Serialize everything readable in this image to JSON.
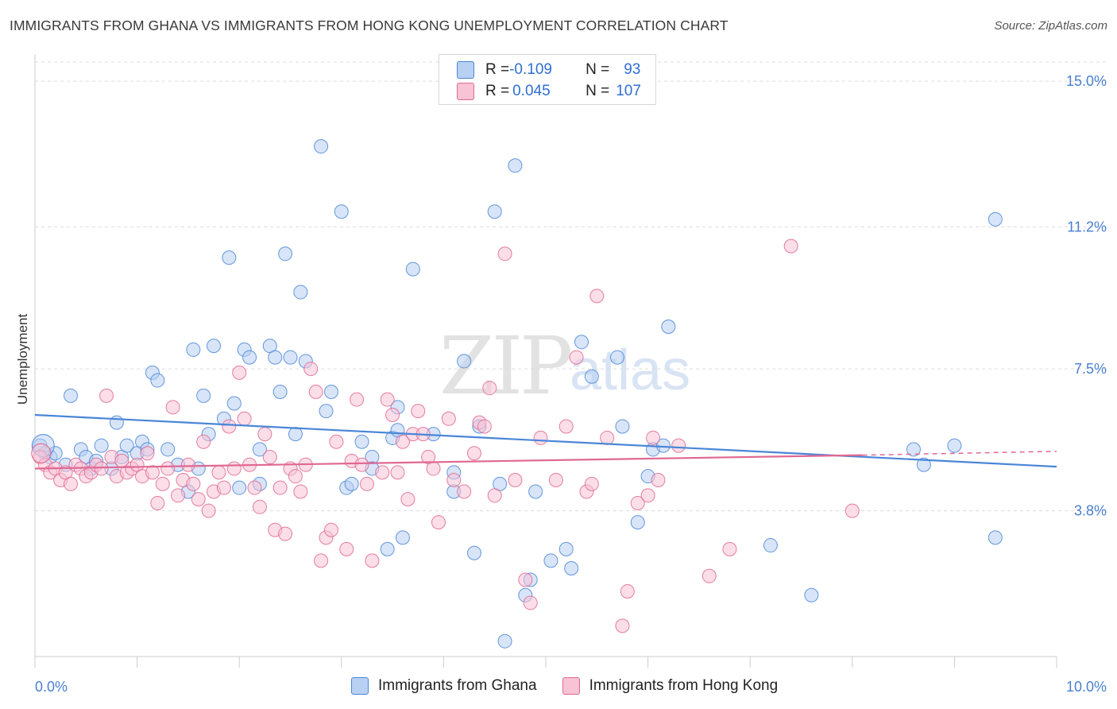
{
  "title": "IMMIGRANTS FROM GHANA VS IMMIGRANTS FROM HONG KONG UNEMPLOYMENT CORRELATION CHART",
  "source": "Source: ZipAtlas.com",
  "watermark": {
    "zip": "ZIP",
    "atlas": "atlas"
  },
  "legend_top": {
    "rows": [
      {
        "r_label": "R = ",
        "r_value": "-0.109",
        "n_label": "N = ",
        "n_value": "93",
        "color": "#a9c6f0"
      },
      {
        "r_label": "R = ",
        "r_value": "0.045",
        "n_label": "N = ",
        "n_value": "107",
        "color": "#f6bcd0"
      }
    ]
  },
  "legend_bottom": {
    "items": [
      {
        "label": "Immigrants from Ghana",
        "color": "#a9c6f0"
      },
      {
        "label": "Immigrants from Hong Kong",
        "color": "#f6bcd0"
      }
    ]
  },
  "chart_data": {
    "type": "scatter",
    "xlabel": "",
    "ylabel": "Unemployment",
    "xlim": [
      0,
      10
    ],
    "ylim": [
      0,
      15.5
    ],
    "x_tick_labels": [
      "0.0%",
      "10.0%"
    ],
    "y_ticks": [
      3.8,
      7.5,
      11.2,
      15.0
    ],
    "y_tick_labels": [
      "3.8%",
      "7.5%",
      "11.2%",
      "15.0%"
    ],
    "grid": "horizontal dashed",
    "series": [
      {
        "name": "Immigrants from Ghana",
        "color": "#4a86d8",
        "fill": "#b8d0f2",
        "trend": {
          "x": [
            0,
            10
          ],
          "y": [
            6.3,
            4.95
          ]
        },
        "points": [
          [
            0.05,
            5.5
          ],
          [
            0.1,
            5.3
          ],
          [
            0.15,
            5.2
          ],
          [
            0.2,
            5.3
          ],
          [
            0.3,
            5.0
          ],
          [
            0.35,
            6.8
          ],
          [
            0.45,
            5.4
          ],
          [
            0.5,
            5.2
          ],
          [
            0.55,
            4.9
          ],
          [
            0.6,
            5.1
          ],
          [
            0.65,
            5.5
          ],
          [
            0.75,
            4.9
          ],
          [
            0.8,
            6.1
          ],
          [
            0.85,
            5.2
          ],
          [
            0.9,
            5.5
          ],
          [
            1.0,
            5.3
          ],
          [
            1.05,
            5.6
          ],
          [
            1.1,
            5.4
          ],
          [
            1.15,
            7.4
          ],
          [
            1.2,
            7.2
          ],
          [
            1.3,
            5.4
          ],
          [
            1.4,
            5.0
          ],
          [
            1.5,
            4.3
          ],
          [
            1.55,
            8.0
          ],
          [
            1.6,
            4.9
          ],
          [
            1.65,
            6.8
          ],
          [
            1.7,
            5.8
          ],
          [
            1.75,
            8.1
          ],
          [
            1.85,
            6.2
          ],
          [
            1.9,
            10.4
          ],
          [
            1.95,
            6.6
          ],
          [
            2.0,
            4.4
          ],
          [
            2.05,
            8.0
          ],
          [
            2.1,
            7.8
          ],
          [
            2.2,
            5.4
          ],
          [
            2.2,
            4.5
          ],
          [
            2.3,
            8.1
          ],
          [
            2.35,
            7.8
          ],
          [
            2.4,
            6.9
          ],
          [
            2.45,
            10.5
          ],
          [
            2.5,
            7.8
          ],
          [
            2.55,
            5.8
          ],
          [
            2.6,
            9.5
          ],
          [
            2.65,
            7.7
          ],
          [
            2.8,
            13.3
          ],
          [
            2.85,
            6.4
          ],
          [
            2.9,
            6.9
          ],
          [
            3.0,
            11.6
          ],
          [
            3.05,
            4.4
          ],
          [
            3.1,
            4.5
          ],
          [
            3.2,
            5.6
          ],
          [
            3.3,
            5.2
          ],
          [
            3.3,
            4.9
          ],
          [
            3.45,
            2.8
          ],
          [
            3.5,
            5.7
          ],
          [
            3.55,
            5.9
          ],
          [
            3.55,
            6.5
          ],
          [
            3.6,
            3.1
          ],
          [
            3.7,
            10.1
          ],
          [
            3.9,
            5.8
          ],
          [
            4.1,
            4.3
          ],
          [
            4.1,
            4.8
          ],
          [
            4.2,
            7.7
          ],
          [
            4.3,
            2.7
          ],
          [
            4.35,
            6.0
          ],
          [
            4.5,
            11.6
          ],
          [
            4.55,
            4.5
          ],
          [
            4.6,
            0.4
          ],
          [
            4.7,
            12.8
          ],
          [
            4.8,
            1.6
          ],
          [
            4.85,
            2.0
          ],
          [
            4.9,
            4.3
          ],
          [
            5.05,
            2.5
          ],
          [
            5.2,
            2.8
          ],
          [
            5.25,
            2.3
          ],
          [
            5.35,
            8.2
          ],
          [
            5.45,
            7.3
          ],
          [
            5.7,
            7.8
          ],
          [
            5.75,
            6.0
          ],
          [
            5.9,
            3.5
          ],
          [
            6.0,
            4.7
          ],
          [
            6.05,
            5.4
          ],
          [
            6.2,
            8.6
          ],
          [
            6.15,
            5.5
          ],
          [
            7.2,
            2.9
          ],
          [
            7.6,
            1.6
          ],
          [
            8.6,
            5.4
          ],
          [
            8.7,
            5.0
          ],
          [
            9.0,
            5.5
          ],
          [
            9.4,
            11.4
          ],
          [
            9.4,
            3.1
          ]
        ]
      },
      {
        "name": "Immigrants from Hong Kong",
        "color": "#e06892",
        "fill": "#f7c3d5",
        "trend": {
          "x": [
            0,
            8.1
          ],
          "y": [
            4.9,
            5.25
          ]
        },
        "trend_dashed": {
          "x": [
            8.1,
            10
          ],
          "y": [
            5.25,
            5.35
          ]
        },
        "points": [
          [
            0.05,
            5.2
          ],
          [
            0.1,
            5.0
          ],
          [
            0.15,
            4.8
          ],
          [
            0.2,
            4.9
          ],
          [
            0.25,
            4.6
          ],
          [
            0.3,
            4.8
          ],
          [
            0.35,
            4.5
          ],
          [
            0.4,
            5.0
          ],
          [
            0.45,
            4.9
          ],
          [
            0.5,
            4.7
          ],
          [
            0.55,
            4.8
          ],
          [
            0.6,
            5.0
          ],
          [
            0.65,
            4.9
          ],
          [
            0.7,
            6.8
          ],
          [
            0.75,
            5.2
          ],
          [
            0.8,
            4.7
          ],
          [
            0.85,
            5.1
          ],
          [
            0.9,
            4.8
          ],
          [
            0.95,
            4.9
          ],
          [
            1.0,
            5.0
          ],
          [
            1.05,
            4.7
          ],
          [
            1.1,
            5.3
          ],
          [
            1.15,
            4.8
          ],
          [
            1.2,
            4.0
          ],
          [
            1.25,
            4.5
          ],
          [
            1.3,
            4.9
          ],
          [
            1.35,
            6.5
          ],
          [
            1.4,
            4.2
          ],
          [
            1.45,
            4.6
          ],
          [
            1.5,
            5.0
          ],
          [
            1.55,
            4.5
          ],
          [
            1.6,
            4.1
          ],
          [
            1.65,
            5.6
          ],
          [
            1.7,
            3.8
          ],
          [
            1.75,
            4.3
          ],
          [
            1.8,
            4.8
          ],
          [
            1.85,
            4.4
          ],
          [
            1.9,
            6.0
          ],
          [
            1.95,
            4.9
          ],
          [
            2.0,
            7.4
          ],
          [
            2.05,
            6.2
          ],
          [
            2.1,
            5.0
          ],
          [
            2.15,
            4.4
          ],
          [
            2.2,
            3.9
          ],
          [
            2.25,
            5.8
          ],
          [
            2.3,
            5.2
          ],
          [
            2.35,
            3.3
          ],
          [
            2.4,
            4.4
          ],
          [
            2.45,
            3.2
          ],
          [
            2.5,
            4.9
          ],
          [
            2.55,
            4.7
          ],
          [
            2.6,
            4.3
          ],
          [
            2.65,
            5.0
          ],
          [
            2.7,
            7.5
          ],
          [
            2.75,
            6.9
          ],
          [
            2.8,
            2.5
          ],
          [
            2.85,
            3.1
          ],
          [
            2.9,
            3.3
          ],
          [
            2.95,
            5.6
          ],
          [
            3.05,
            2.8
          ],
          [
            3.1,
            5.1
          ],
          [
            3.15,
            6.7
          ],
          [
            3.2,
            5.0
          ],
          [
            3.25,
            4.5
          ],
          [
            3.3,
            2.5
          ],
          [
            3.4,
            4.8
          ],
          [
            3.45,
            6.7
          ],
          [
            3.5,
            6.3
          ],
          [
            3.55,
            4.8
          ],
          [
            3.6,
            5.6
          ],
          [
            3.65,
            4.1
          ],
          [
            3.7,
            5.8
          ],
          [
            3.75,
            6.4
          ],
          [
            3.8,
            5.8
          ],
          [
            3.85,
            5.2
          ],
          [
            3.9,
            4.9
          ],
          [
            3.95,
            3.5
          ],
          [
            4.05,
            6.2
          ],
          [
            4.1,
            4.6
          ],
          [
            4.2,
            4.3
          ],
          [
            4.3,
            5.3
          ],
          [
            4.35,
            6.1
          ],
          [
            4.4,
            6.0
          ],
          [
            4.45,
            7.0
          ],
          [
            4.5,
            4.2
          ],
          [
            4.6,
            10.5
          ],
          [
            4.7,
            4.6
          ],
          [
            4.8,
            2.0
          ],
          [
            4.85,
            1.4
          ],
          [
            4.95,
            5.7
          ],
          [
            5.1,
            4.6
          ],
          [
            5.2,
            6.0
          ],
          [
            5.3,
            7.8
          ],
          [
            5.4,
            4.3
          ],
          [
            5.45,
            4.5
          ],
          [
            5.5,
            9.4
          ],
          [
            5.6,
            5.7
          ],
          [
            5.75,
            0.8
          ],
          [
            5.8,
            1.7
          ],
          [
            5.9,
            4.0
          ],
          [
            6.0,
            4.2
          ],
          [
            6.05,
            5.7
          ],
          [
            6.1,
            4.6
          ],
          [
            6.3,
            5.5
          ],
          [
            6.6,
            2.1
          ],
          [
            6.8,
            2.8
          ],
          [
            7.4,
            10.7
          ],
          [
            8.0,
            3.8
          ]
        ]
      }
    ]
  }
}
